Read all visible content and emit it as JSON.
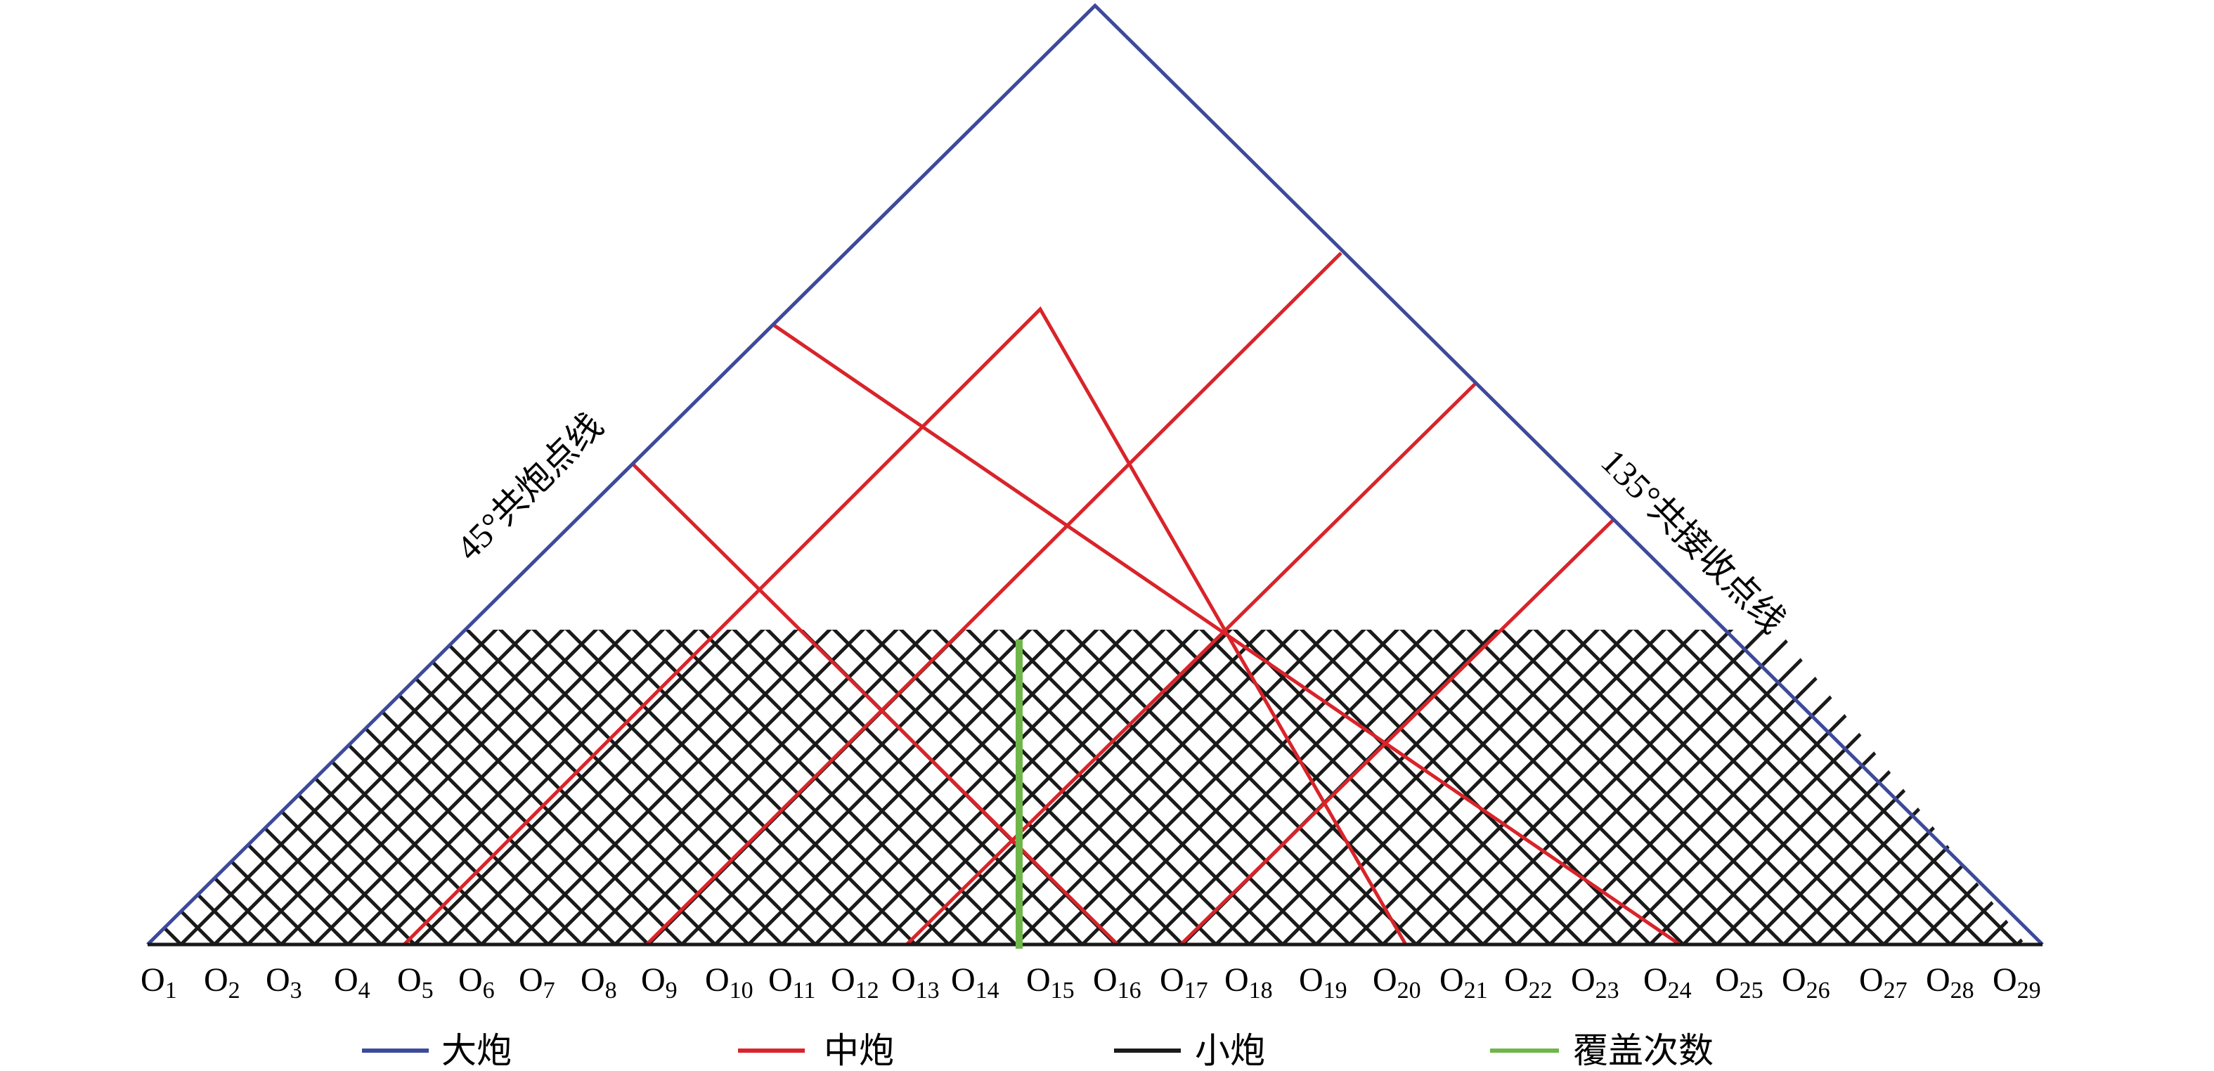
{
  "diagram": {
    "left_label": "45°共炮点线",
    "right_label": "135°共接收点线",
    "station_prefix": "O",
    "stations": [
      "1",
      "2",
      "3",
      "4",
      "5",
      "6",
      "7",
      "8",
      "9",
      "10",
      "11",
      "12",
      "13",
      "14",
      "15",
      "16",
      "17",
      "18",
      "19",
      "20",
      "21",
      "22",
      "23",
      "24",
      "25",
      "26",
      "27",
      "28",
      "29"
    ]
  },
  "legend": [
    {
      "label": "大炮",
      "color": "#3d4a9a"
    },
    {
      "label": "中炮",
      "color": "#d8242a"
    },
    {
      "label": "小炮",
      "color": "#1a1a1a"
    },
    {
      "label": "覆盖次数",
      "color": "#6fb64a"
    }
  ]
}
